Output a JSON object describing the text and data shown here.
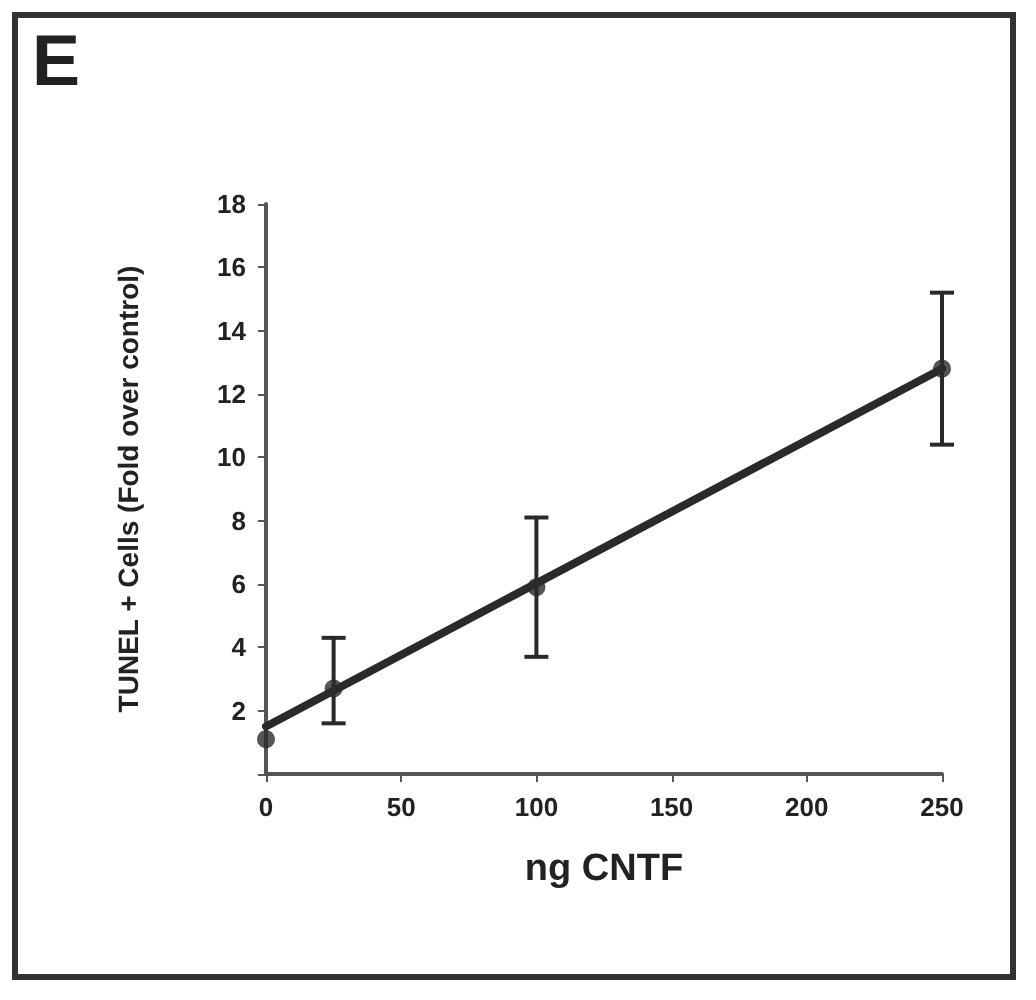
{
  "chart_data": {
    "type": "scatter",
    "annotations": [
      "E"
    ],
    "xlabel": "ng CNTF",
    "ylabel": "TUNEL + Cells (Fold over control)",
    "xlim": [
      0,
      250
    ],
    "xticks": [
      0,
      50,
      100,
      150,
      200,
      250
    ],
    "ylim": [
      0,
      18
    ],
    "yticks": [
      {
        "value": 0,
        "label": null
      },
      2,
      4,
      6,
      8,
      10,
      12,
      14,
      16,
      18
    ],
    "grid": false,
    "series": [
      {
        "color": "#2a2a2a",
        "marker": "circle",
        "x": [
          0,
          25,
          100,
          250
        ],
        "values": [
          1.1,
          2.7,
          5.9,
          12.8
        ],
        "errors": [
          null,
          [
            1.6,
            4.3
          ],
          [
            3.7,
            8.1
          ],
          [
            10.4,
            15.2
          ]
        ]
      },
      {
        "type": "line",
        "color": "#2a2a2a",
        "marker": "none",
        "line_style": "solid",
        "x": [
          0,
          250
        ],
        "values": [
          1.5,
          12.8
        ]
      }
    ]
  }
}
